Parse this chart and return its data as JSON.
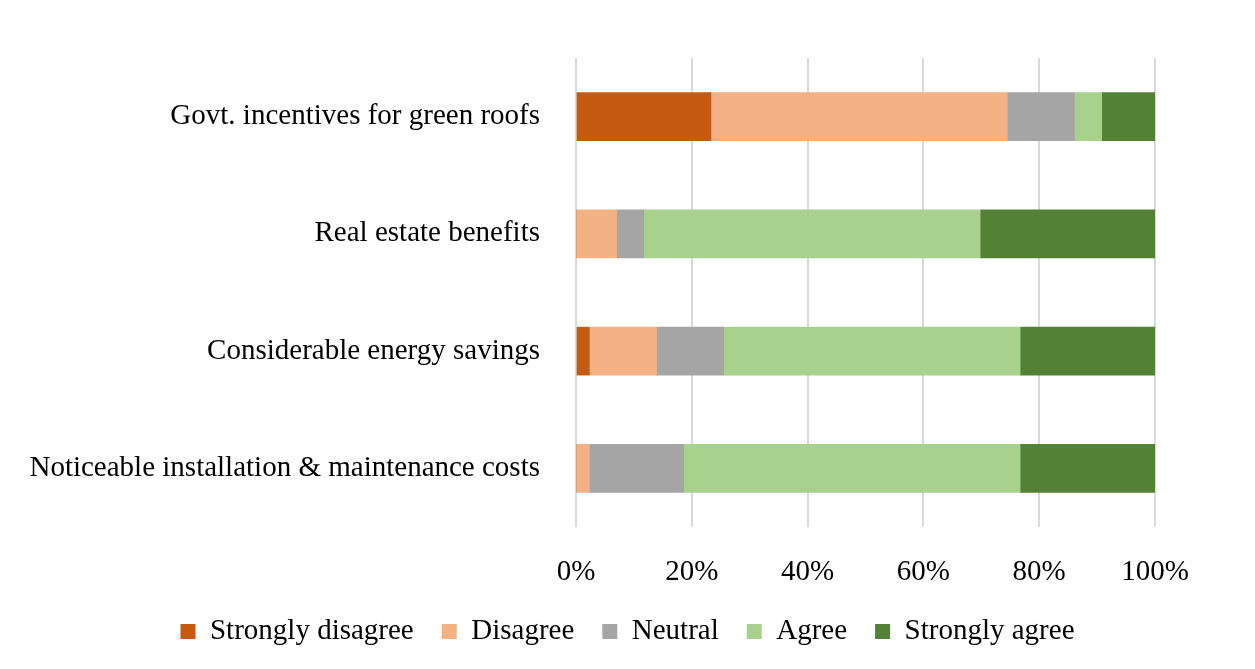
{
  "chart_data": {
    "type": "bar",
    "orientation": "horizontal",
    "stacked": true,
    "categories": [
      "Govt. incentives for green roofs",
      "Real estate benefits",
      "Considerable energy savings",
      "Noticeable installation & maintenance costs"
    ],
    "series": [
      {
        "name": "Strongly disagree",
        "color": "#c55a11",
        "values": [
          23.3,
          0,
          2.3,
          0
        ]
      },
      {
        "name": "Disagree",
        "color": "#f4b183",
        "values": [
          51.2,
          7.0,
          11.6,
          2.3
        ]
      },
      {
        "name": "Neutral",
        "color": "#a5a5a5",
        "values": [
          11.6,
          4.7,
          11.6,
          16.3
        ]
      },
      {
        "name": "Agree",
        "color": "#a9d18e",
        "values": [
          4.7,
          58.1,
          51.2,
          58.1
        ]
      },
      {
        "name": "Strongly agree",
        "color": "#538135",
        "values": [
          9.3,
          30.2,
          23.3,
          23.3
        ]
      }
    ],
    "xlim": [
      0,
      100
    ],
    "xticks": [
      {
        "value": 0,
        "label": "0%"
      },
      {
        "value": 20,
        "label": "20%"
      },
      {
        "value": 40,
        "label": "40%"
      },
      {
        "value": 60,
        "label": "60%"
      },
      {
        "value": 80,
        "label": "80%"
      },
      {
        "value": 100,
        "label": "100%"
      }
    ],
    "grid": "x",
    "legend": "bottom"
  }
}
